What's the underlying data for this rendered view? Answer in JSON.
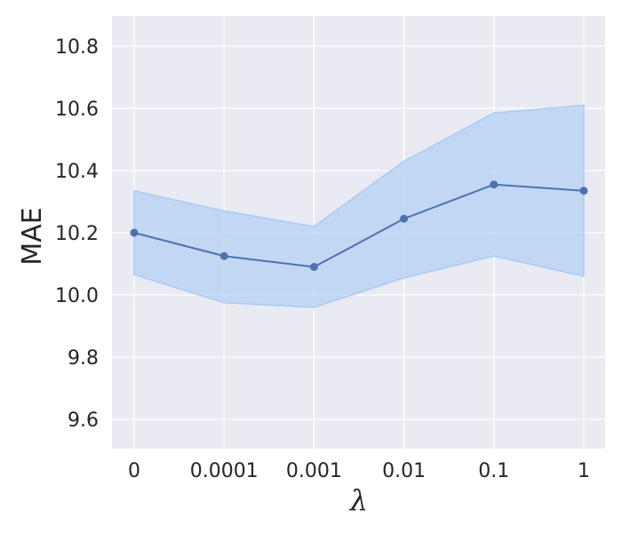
{
  "chart_data": {
    "type": "line",
    "categories": [
      "0",
      "0.0001",
      "0.001",
      "0.01",
      "0.1",
      "1"
    ],
    "series": [
      {
        "values": [
          10.2,
          10.125,
          10.09,
          10.245,
          10.355,
          10.335
        ],
        "lower": [
          10.065,
          9.975,
          9.96,
          10.055,
          10.125,
          10.06
        ],
        "upper": [
          10.335,
          10.27,
          10.22,
          10.43,
          10.585,
          10.61
        ]
      }
    ],
    "xlabel": "λ",
    "ylabel": "MAE",
    "ylim": [
      9.5,
      10.9
    ],
    "yticks": [
      "9.6",
      "9.8",
      "10.0",
      "10.2",
      "10.4",
      "10.6",
      "10.8"
    ],
    "grid": true,
    "colors": {
      "background": "#eaeaf2",
      "grid": "#ffffff",
      "line": "#4c72b0",
      "band": "#a8cbf4"
    }
  }
}
